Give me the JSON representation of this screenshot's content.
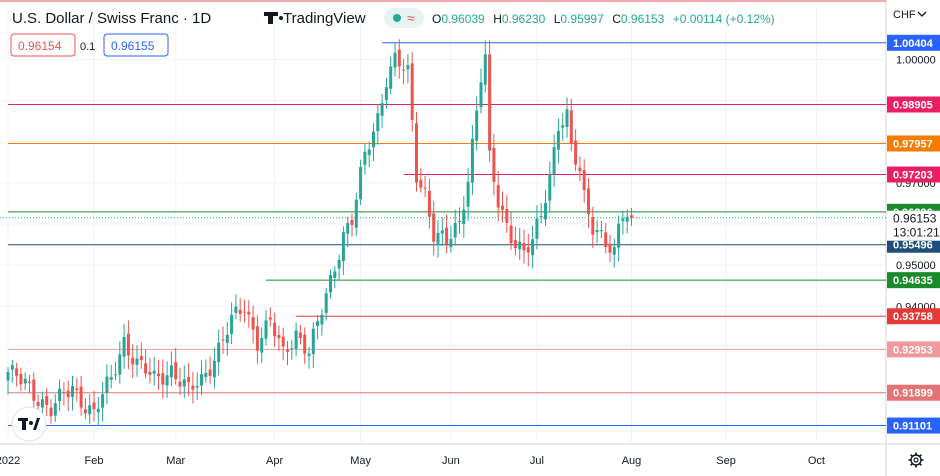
{
  "header": {
    "symbol_title": "U.S. Dollar / Swiss Franc · 1D",
    "brand": "TradingView",
    "ohlc": {
      "open_key": "O",
      "open": "0.96039",
      "high_key": "H",
      "high": "0.96230",
      "low_key": "L",
      "low": "0.95997",
      "close_key": "C",
      "close": "0.96153",
      "change": "+0.00114 (+0.12%)"
    },
    "sell_price": "0.96154",
    "spread": "0.1",
    "buy_price": "0.96155",
    "currency": "CHF",
    "currency_icon": "chevron-down-icon"
  },
  "price_label": {
    "value": "0.96153",
    "countdown": "13:01:21"
  },
  "logo_icon": "tradingview-logo-icon",
  "settings_icon": "gear-icon",
  "colors": {
    "up": "#26a69a",
    "down": "#ef5350",
    "level_blue": "#2962ff",
    "level_pink": "#e91e63",
    "level_orange": "#f57c00",
    "level_green": "#1b8a2a",
    "level_red": "#e53935"
  },
  "chart_data": {
    "type": "candlestick",
    "title": "U.S. Dollar / Swiss Franc · 1D",
    "ylim": [
      0.9075,
      1.0125
    ],
    "y_ticks": [
      0.94,
      0.95,
      0.96,
      0.97,
      0.98,
      0.99,
      1.0
    ],
    "y_tick_labels": [
      "0.94000",
      "0.95000",
      "0.96000",
      "0.97000",
      "0.98000",
      "0.99000",
      "1.00000"
    ],
    "x_ticks": [
      "2022",
      "Feb",
      "Mar",
      "Apr",
      "May",
      "Jun",
      "Jul",
      "Aug",
      "Sep",
      "Oct"
    ],
    "current_price": 0.96153,
    "levels": [
      {
        "value": 1.00404,
        "label": "1.00404",
        "color": "#2962ff"
      },
      {
        "value": 0.98905,
        "label": "0.98905",
        "color": "#e91e63"
      },
      {
        "value": 0.97957,
        "label": "0.97957",
        "color": "#f57c00"
      },
      {
        "value": 0.97203,
        "label": "0.97203",
        "color": "#e91e63"
      },
      {
        "value": 0.96296,
        "label": "0.96296",
        "color": "#1b8a2a"
      },
      {
        "value": 0.95496,
        "label": "0.95496",
        "color": "#1e4e79"
      },
      {
        "value": 0.94635,
        "label": "0.94635",
        "color": "#1b8a2a"
      },
      {
        "value": 0.93758,
        "label": "0.93758",
        "color": "#e53935"
      },
      {
        "value": 0.92953,
        "label": "0.92953",
        "color": "#ef9a9a"
      },
      {
        "value": 0.91899,
        "label": "0.91899",
        "color": "#e57373"
      },
      {
        "value": 0.91101,
        "label": "0.91101",
        "color": "#2962ff"
      }
    ],
    "close_anchors": [
      [
        0,
        0.924
      ],
      [
        5,
        0.92
      ],
      [
        10,
        0.915
      ],
      [
        15,
        0.92
      ],
      [
        20,
        0.914
      ],
      [
        24,
        0.922
      ],
      [
        27,
        0.932
      ],
      [
        30,
        0.926
      ],
      [
        34,
        0.922
      ],
      [
        38,
        0.925
      ],
      [
        42,
        0.919
      ],
      [
        45,
        0.922
      ],
      [
        48,
        0.928
      ],
      [
        52,
        0.936
      ],
      [
        55,
        0.94
      ],
      [
        58,
        0.932
      ],
      [
        61,
        0.936
      ],
      [
        64,
        0.928
      ],
      [
        67,
        0.934
      ],
      [
        70,
        0.929
      ],
      [
        72,
        0.935
      ],
      [
        75,
        0.946
      ],
      [
        78,
        0.958
      ],
      [
        80,
        0.961
      ],
      [
        83,
        0.976
      ],
      [
        86,
        0.986
      ],
      [
        88,
        0.996
      ],
      [
        90,
        1.0
      ],
      [
        93,
        0.996
      ],
      [
        95,
        0.972
      ],
      [
        97,
        0.968
      ],
      [
        99,
        0.958
      ],
      [
        102,
        0.955
      ],
      [
        105,
        0.96
      ],
      [
        107,
        0.972
      ],
      [
        108,
        0.98
      ],
      [
        110,
        0.996
      ],
      [
        111,
        1.0
      ],
      [
        112,
        0.975
      ],
      [
        114,
        0.965
      ],
      [
        116,
        0.96
      ],
      [
        118,
        0.956
      ],
      [
        120,
        0.953
      ],
      [
        122,
        0.955
      ],
      [
        124,
        0.962
      ],
      [
        126,
        0.972
      ],
      [
        128,
        0.985
      ],
      [
        130,
        0.986
      ],
      [
        131,
        0.978
      ],
      [
        133,
        0.972
      ],
      [
        134,
        0.966
      ],
      [
        136,
        0.96
      ],
      [
        138,
        0.958
      ],
      [
        140,
        0.954
      ],
      [
        141,
        0.952
      ],
      [
        142,
        0.958
      ],
      [
        143,
        0.962
      ],
      [
        145,
        0.9615
      ]
    ],
    "x_tick_bars": [
      0,
      20,
      39,
      62,
      82,
      103,
      123,
      145,
      167,
      188
    ]
  }
}
